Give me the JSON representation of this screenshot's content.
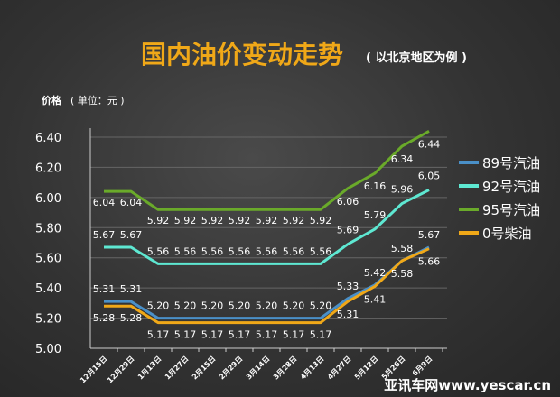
{
  "chart_data": {
    "type": "line",
    "title": "国内油价变动走势",
    "subtitle": "( 以北京地区为例 )",
    "ylabel": "价格",
    "yunit": "( 单位：元 )",
    "xlabel": "",
    "ylim": [
      5.0,
      6.4
    ],
    "yticks": [
      "5.00",
      "5.20",
      "5.40",
      "5.60",
      "5.80",
      "6.00",
      "6.20",
      "6.40"
    ],
    "grid": true,
    "legend_position": "right",
    "categories": [
      "12月15日",
      "12月29日",
      "1月13日",
      "1月27日",
      "2月15日",
      "2月29日",
      "3月14日",
      "3月28日",
      "4月13日",
      "4月27日",
      "5月12日",
      "5月26日",
      "6月9日"
    ],
    "series": [
      {
        "name": "89号汽油",
        "color": "#4a90c8",
        "values": [
          5.31,
          5.31,
          5.2,
          5.2,
          5.2,
          5.2,
          5.2,
          5.2,
          5.2,
          5.33,
          5.42,
          5.58,
          5.67
        ],
        "labels": [
          "5.31",
          "5.31",
          "5.20",
          "5.20",
          "5.20",
          "5.20",
          "5.20",
          "5.20",
          "5.20",
          "5.33",
          "5.42",
          "5.58",
          "5.67"
        ]
      },
      {
        "name": "92号汽油",
        "color": "#5ee8d2",
        "values": [
          5.67,
          5.67,
          5.56,
          5.56,
          5.56,
          5.56,
          5.56,
          5.56,
          5.56,
          5.69,
          5.79,
          5.96,
          6.05
        ],
        "labels": [
          "5.67",
          "5.67",
          "5.56",
          "5.56",
          "5.56",
          "5.56",
          "5.56",
          "5.56",
          "5.56",
          "5.69",
          "5.79",
          "5.96",
          "6.05"
        ]
      },
      {
        "name": "95号汽油",
        "color": "#6aaa2a",
        "values": [
          6.04,
          6.04,
          5.92,
          5.92,
          5.92,
          5.92,
          5.92,
          5.92,
          5.92,
          6.06,
          6.16,
          6.34,
          6.44
        ],
        "labels": [
          "6.04",
          "6.04",
          "5.92",
          "5.92",
          "5.92",
          "5.92",
          "5.92",
          "5.92",
          "5.92",
          "6.06",
          "6.16",
          "6.34",
          "6.44"
        ]
      },
      {
        "name": "0号柴油",
        "color": "#f0a818",
        "values": [
          5.28,
          5.28,
          5.17,
          5.17,
          5.17,
          5.17,
          5.17,
          5.17,
          5.17,
          5.31,
          5.41,
          5.58,
          5.66
        ],
        "labels": [
          "5.28",
          "5.28",
          "5.17",
          "5.17",
          "5.17",
          "5.17",
          "5.17",
          "5.17",
          "5.17",
          "5.31",
          "5.41",
          "5.58",
          "5.66"
        ]
      }
    ]
  },
  "watermark": "亚讯车网www.yescar.cn",
  "colors": {
    "title": "#f0a818",
    "text": "#ffffff",
    "grid": "#666666",
    "axis": "#bbbbbb"
  }
}
